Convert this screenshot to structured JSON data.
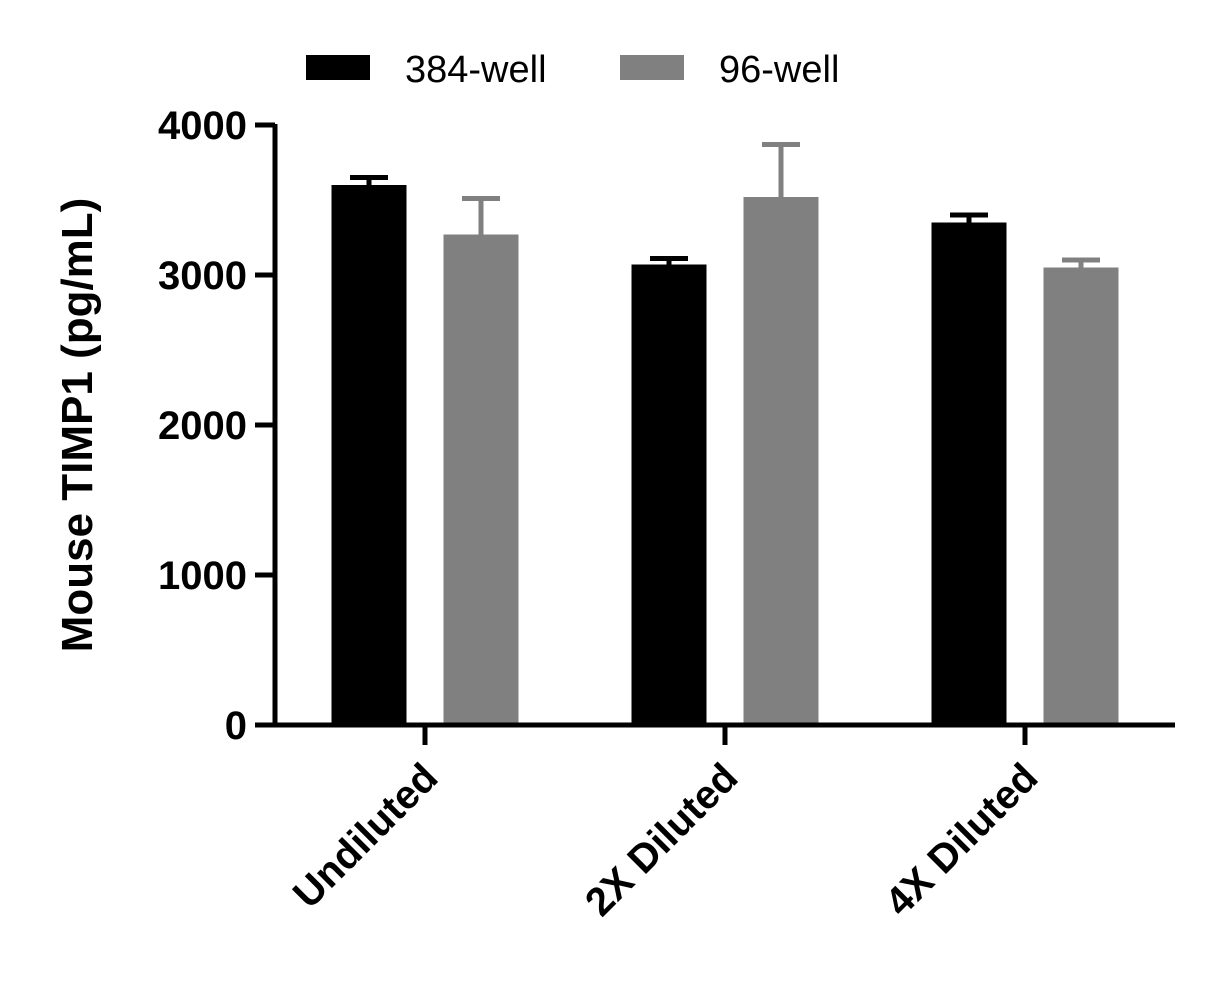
{
  "chart_data": {
    "type": "bar",
    "title": "",
    "xlabel": "",
    "ylabel": "Mouse TIMP1 (pg/mL)",
    "ylim": [
      0,
      4000
    ],
    "yticks": [
      0,
      1000,
      2000,
      3000,
      4000
    ],
    "categories": [
      "Undiluted",
      "2X Diluted",
      "4X Diluted"
    ],
    "series": [
      {
        "name": "384-well",
        "color": "#000000",
        "values": [
          3600,
          3070,
          3350
        ],
        "errors": [
          50,
          40,
          50
        ]
      },
      {
        "name": "96-well",
        "color": "#808080",
        "values": [
          3270,
          3520,
          3050
        ],
        "errors": [
          240,
          350,
          50
        ]
      }
    ],
    "legend_position": "top",
    "grid": false
  }
}
